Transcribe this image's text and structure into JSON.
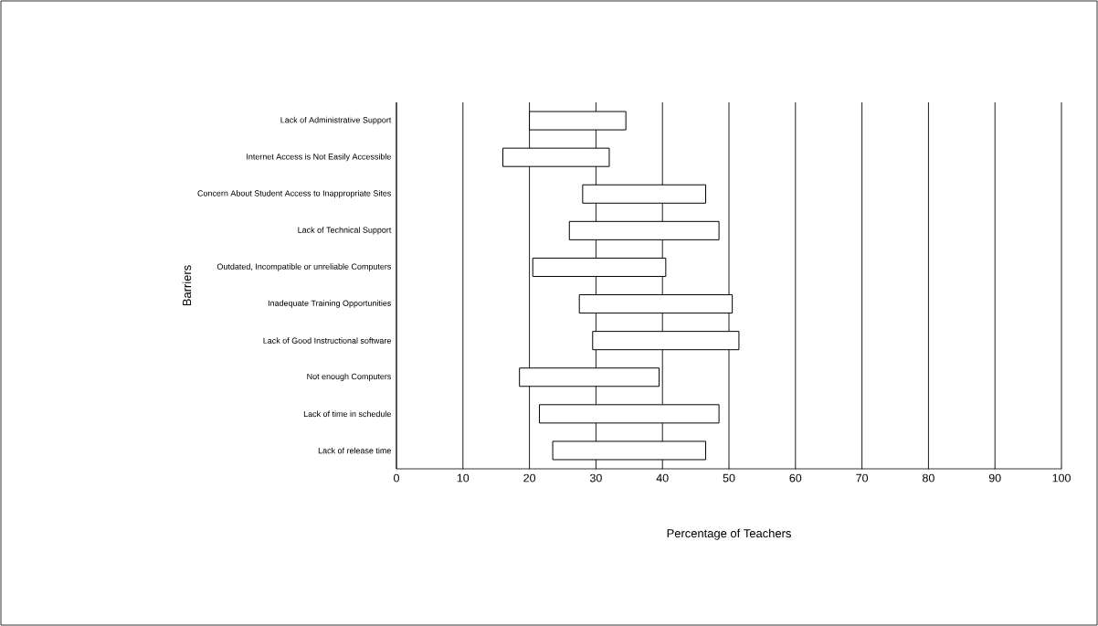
{
  "chart_data": {
    "type": "bar",
    "orientation": "horizontal",
    "xlabel": "Percentage of Teachers",
    "ylabel": "Barriers",
    "categories": [
      "Lack of Administrative Support",
      "Internet Access is Not Easily Accessible",
      "Concern About Student Access to Inappropriate Sites",
      "Lack of Technical Support",
      "Outdated, Incompatible or unreliable Computers",
      "Inadequate Training Opportunities",
      "Lack of Good Instructional software",
      "Not enough Computers",
      "Lack of time in schedule",
      "Lack of release time"
    ],
    "base": [
      20,
      16,
      28,
      26,
      20.5,
      27.5,
      29.5,
      18.5,
      21.5,
      23.5
    ],
    "values": [
      14.5,
      16,
      18.5,
      22.5,
      20,
      23,
      22,
      21,
      27,
      23
    ],
    "color": "#ffffff",
    "xlim": [
      0,
      100
    ],
    "xticks": [
      0,
      10,
      20,
      30,
      40,
      50,
      60,
      70,
      80,
      90,
      100
    ],
    "grid": "x"
  }
}
